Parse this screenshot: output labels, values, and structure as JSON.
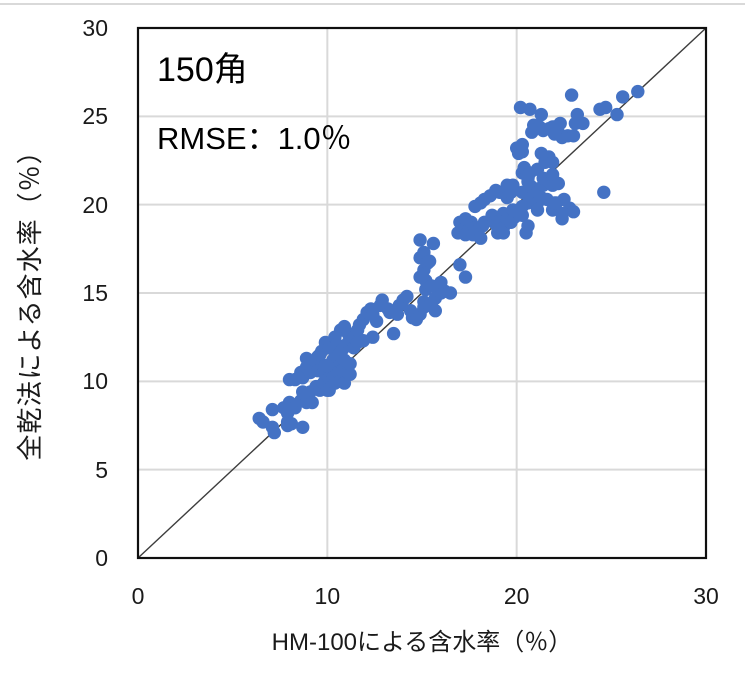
{
  "chart": {
    "annotation_line1": "150角",
    "annotation_line2": "RMSE：1.0％",
    "xlabel": "HM-100による含水率（％）",
    "ylabel": "全乾法による含水率（％）"
  },
  "chart_data": {
    "type": "scatter",
    "title": "",
    "xlabel": "HM-100による含水率（％）",
    "ylabel": "全乾法による含水率（％）",
    "annotations": [
      "150角",
      "RMSE：1.0％"
    ],
    "xlim": [
      0,
      30
    ],
    "ylim": [
      0,
      30
    ],
    "x_ticks": [
      0,
      10,
      20,
      30
    ],
    "y_ticks": [
      0,
      5,
      10,
      15,
      20,
      25,
      30
    ],
    "x_gridlines": [
      10,
      20
    ],
    "y_gridlines": [
      5,
      10,
      15,
      20,
      25
    ],
    "grid": true,
    "identity_line": true,
    "legend": "none",
    "marker_color": "#4472C4",
    "grid_color": "#d9d9d9",
    "axis_color": "#0f0f0f",
    "line_color": "#3d3d3d",
    "points": [
      [
        6.4,
        7.9
      ],
      [
        6.6,
        7.7
      ],
      [
        7.1,
        8.4
      ],
      [
        7.1,
        7.4
      ],
      [
        7.2,
        7.1
      ],
      [
        7.7,
        8.5
      ],
      [
        7.9,
        8.2
      ],
      [
        7.9,
        7.7
      ],
      [
        7.9,
        7.5
      ],
      [
        8.1,
        7.6
      ],
      [
        8.0,
        8.8
      ],
      [
        8.3,
        8.5
      ],
      [
        8.6,
        8.9
      ],
      [
        8.7,
        7.4
      ],
      [
        8.7,
        9.4
      ],
      [
        8.9,
        8.8
      ],
      [
        9.0,
        9.1
      ],
      [
        9.1,
        9.4
      ],
      [
        9.2,
        8.8
      ],
      [
        9.4,
        9.7
      ],
      [
        9.6,
        9.5
      ],
      [
        9.8,
        9.9
      ],
      [
        8.0,
        10.1
      ],
      [
        8.3,
        10.1
      ],
      [
        8.6,
        10.5
      ],
      [
        8.7,
        10.2
      ],
      [
        8.9,
        10.8
      ],
      [
        8.9,
        11.3
      ],
      [
        9.1,
        10.5
      ],
      [
        9.4,
        11.1
      ],
      [
        9.5,
        10.6
      ],
      [
        9.5,
        11.4
      ],
      [
        9.6,
        11.5
      ],
      [
        9.8,
        10.5
      ],
      [
        9.9,
        10.9
      ],
      [
        10.0,
        9.5
      ],
      [
        10.1,
        9.5
      ],
      [
        10.1,
        10.8
      ],
      [
        10.1,
        10.2
      ],
      [
        10.3,
        10.2
      ],
      [
        10.4,
        11.0
      ],
      [
        10.4,
        9.9
      ],
      [
        10.6,
        10.5
      ],
      [
        10.7,
        10.0
      ],
      [
        10.8,
        10.6
      ],
      [
        10.9,
        9.9
      ],
      [
        11.1,
        10.5
      ],
      [
        11.2,
        10.4
      ],
      [
        9.7,
        11.7
      ],
      [
        9.9,
        12.2
      ],
      [
        10.1,
        11.9
      ],
      [
        10.3,
        11.8
      ],
      [
        10.3,
        11.2
      ],
      [
        10.0,
        10.9
      ],
      [
        10.4,
        12.5
      ],
      [
        10.5,
        12.1
      ],
      [
        10.6,
        11.5
      ],
      [
        10.7,
        12.9
      ],
      [
        10.8,
        11.8
      ],
      [
        10.9,
        13.1
      ],
      [
        10.9,
        11.2
      ],
      [
        11.1,
        12.7
      ],
      [
        11.1,
        12.2
      ],
      [
        11.2,
        11.0
      ],
      [
        11.3,
        12.3
      ],
      [
        11.4,
        11.9
      ],
      [
        11.4,
        12.5
      ],
      [
        11.6,
        12.9
      ],
      [
        11.6,
        12.2
      ],
      [
        11.7,
        13.2
      ],
      [
        11.9,
        13.5
      ],
      [
        11.9,
        12.3
      ],
      [
        12.1,
        13.9
      ],
      [
        12.3,
        14.1
      ],
      [
        12.4,
        13.8
      ],
      [
        12.4,
        12.5
      ],
      [
        12.6,
        13.4
      ],
      [
        12.8,
        14.3
      ],
      [
        12.9,
        14.6
      ],
      [
        13.2,
        14.1
      ],
      [
        13.3,
        13.9
      ],
      [
        13.5,
        12.7
      ],
      [
        13.7,
        13.8
      ],
      [
        13.8,
        14.3
      ],
      [
        14.0,
        14.6
      ],
      [
        14.2,
        14.8
      ],
      [
        14.4,
        14.0
      ],
      [
        14.5,
        13.6
      ],
      [
        14.7,
        13.5
      ],
      [
        14.9,
        13.8
      ],
      [
        15.1,
        14.5
      ],
      [
        15.1,
        14.2
      ],
      [
        15.4,
        14.3
      ],
      [
        15.7,
        14.7
      ],
      [
        15.7,
        14.0
      ],
      [
        16.0,
        15.0
      ],
      [
        16.2,
        15.1
      ],
      [
        16.5,
        15.0
      ],
      [
        14.9,
        15.9
      ],
      [
        14.9,
        17.0
      ],
      [
        14.9,
        18.0
      ],
      [
        15.1,
        16.3
      ],
      [
        15.1,
        17.3
      ],
      [
        15.2,
        15.7
      ],
      [
        15.2,
        15.2
      ],
      [
        15.3,
        16.7
      ],
      [
        15.4,
        16.8
      ],
      [
        15.5,
        15.4
      ],
      [
        15.6,
        17.8
      ],
      [
        16.0,
        15.6
      ],
      [
        17.0,
        16.6
      ],
      [
        17.3,
        15.9
      ],
      [
        16.9,
        18.4
      ],
      [
        17.4,
        18.6
      ],
      [
        17.0,
        19.0
      ],
      [
        17.2,
        18.6
      ],
      [
        17.3,
        19.2
      ],
      [
        17.3,
        18.3
      ],
      [
        17.5,
        18.6
      ],
      [
        17.6,
        19.0
      ],
      [
        17.7,
        18.3
      ],
      [
        17.8,
        18.7
      ],
      [
        17.8,
        19.9
      ],
      [
        18.0,
        18.6
      ],
      [
        18.1,
        18.1
      ],
      [
        18.1,
        20.1
      ],
      [
        18.2,
        18.8
      ],
      [
        18.3,
        19.0
      ],
      [
        18.3,
        20.3
      ],
      [
        18.6,
        19.1
      ],
      [
        18.6,
        20.5
      ],
      [
        18.7,
        19.4
      ],
      [
        18.8,
        19.0
      ],
      [
        18.9,
        20.8
      ],
      [
        19.0,
        18.7
      ],
      [
        19.0,
        19.0
      ],
      [
        19.0,
        18.4
      ],
      [
        19.1,
        20.7
      ],
      [
        19.3,
        19.5
      ],
      [
        19.3,
        18.7
      ],
      [
        19.3,
        18.4
      ],
      [
        19.5,
        19.2
      ],
      [
        19.5,
        20.4
      ],
      [
        19.7,
        20.7
      ],
      [
        19.7,
        19.0
      ],
      [
        19.8,
        19.7
      ],
      [
        19.8,
        21.1
      ],
      [
        19.9,
        19.3
      ],
      [
        20.0,
        19.6
      ],
      [
        20.3,
        19.4
      ],
      [
        20.5,
        18.4
      ],
      [
        20.6,
        18.8
      ],
      [
        19.5,
        21.1
      ],
      [
        20.3,
        19.9
      ],
      [
        20.3,
        20.7
      ],
      [
        20.3,
        21.8
      ],
      [
        20.4,
        22.1
      ],
      [
        20.6,
        20.1
      ],
      [
        20.6,
        21.3
      ],
      [
        20.6,
        21.5
      ],
      [
        20.7,
        21.8
      ],
      [
        20.8,
        20.4
      ],
      [
        20.8,
        21.0
      ],
      [
        21.1,
        20.1
      ],
      [
        21.1,
        20.7
      ],
      [
        21.1,
        22.0
      ],
      [
        21.1,
        19.7
      ],
      [
        21.3,
        20.4
      ],
      [
        21.4,
        21.1
      ],
      [
        21.4,
        21.5
      ],
      [
        21.6,
        20.3
      ],
      [
        21.7,
        21.3
      ],
      [
        21.9,
        21.1
      ],
      [
        21.9,
        21.7
      ],
      [
        21.9,
        19.7
      ],
      [
        22.0,
        20.1
      ],
      [
        22.1,
        20.1
      ],
      [
        22.2,
        21.2
      ],
      [
        22.4,
        19.2
      ],
      [
        22.4,
        19.5
      ],
      [
        22.5,
        20.3
      ],
      [
        22.8,
        19.8
      ],
      [
        23.0,
        19.6
      ],
      [
        24.6,
        20.7
      ],
      [
        20.0,
        23.2
      ],
      [
        20.1,
        22.9
      ],
      [
        20.3,
        23.0
      ],
      [
        20.3,
        23.4
      ],
      [
        21.3,
        22.9
      ],
      [
        21.5,
        22.4
      ],
      [
        21.7,
        22.7
      ],
      [
        21.9,
        22.4
      ],
      [
        20.2,
        25.5
      ],
      [
        20.7,
        25.4
      ],
      [
        20.8,
        24.1
      ],
      [
        20.9,
        24.5
      ],
      [
        21.2,
        24.4
      ],
      [
        21.3,
        25.1
      ],
      [
        21.4,
        24.2
      ],
      [
        21.7,
        24.3
      ],
      [
        21.9,
        24.4
      ],
      [
        22.0,
        24.4
      ],
      [
        22.0,
        24.0
      ],
      [
        22.2,
        24.1
      ],
      [
        22.3,
        24.6
      ],
      [
        22.4,
        23.8
      ],
      [
        22.7,
        23.9
      ],
      [
        23.0,
        23.9
      ],
      [
        23.1,
        24.6
      ],
      [
        23.5,
        24.6
      ],
      [
        23.2,
        25.1
      ],
      [
        22.9,
        26.2
      ],
      [
        24.4,
        25.4
      ],
      [
        24.7,
        25.5
      ],
      [
        25.3,
        25.1
      ],
      [
        25.6,
        26.1
      ],
      [
        26.4,
        26.4
      ]
    ]
  }
}
